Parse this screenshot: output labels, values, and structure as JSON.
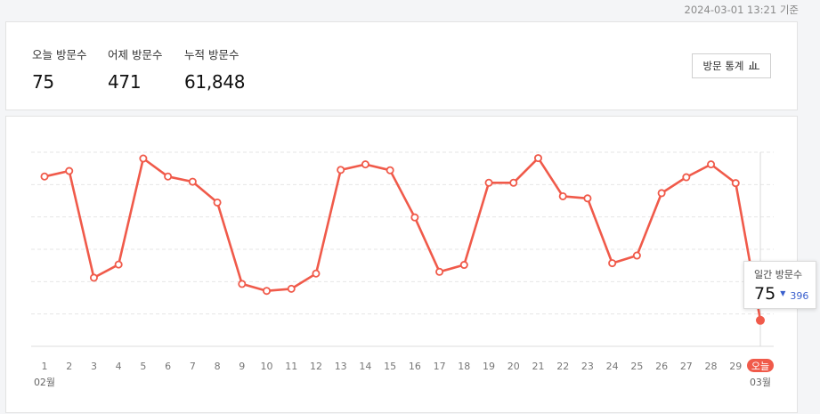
{
  "timestamp": "2024-03-01 13:21 기준",
  "stats": [
    {
      "label": "오늘 방문수",
      "value": "75"
    },
    {
      "label": "어제 방문수",
      "value": "471"
    },
    {
      "label": "누적 방문수",
      "value": "61,848"
    }
  ],
  "button": {
    "label": "방문 통계",
    "icon": "bar-chart-icon"
  },
  "tooltip": {
    "label": "일간 방문수",
    "value": "75",
    "diff": "396",
    "arrow": "▼"
  },
  "colors": {
    "line": "#f05a4a",
    "diff": "#3a5fcd"
  },
  "chart_data": {
    "type": "line",
    "x": [
      "1",
      "2",
      "3",
      "4",
      "5",
      "6",
      "7",
      "8",
      "9",
      "10",
      "11",
      "12",
      "13",
      "14",
      "15",
      "16",
      "17",
      "18",
      "19",
      "20",
      "21",
      "22",
      "23",
      "24",
      "25",
      "26",
      "27",
      "28",
      "29",
      "오늘"
    ],
    "month_labels": {
      "start": "02월",
      "end": "03월"
    },
    "series": [
      {
        "values": [
          490,
          506,
          198,
          236,
          542,
          490,
          475,
          415,
          180,
          160,
          166,
          210,
          509,
          525,
          508,
          372,
          215,
          235,
          472,
          472,
          543,
          433,
          427,
          240,
          262,
          442,
          488,
          525,
          471,
          75
        ]
      }
    ],
    "ylim": [
      0,
      560
    ],
    "grid": true,
    "highlight_last": true
  }
}
